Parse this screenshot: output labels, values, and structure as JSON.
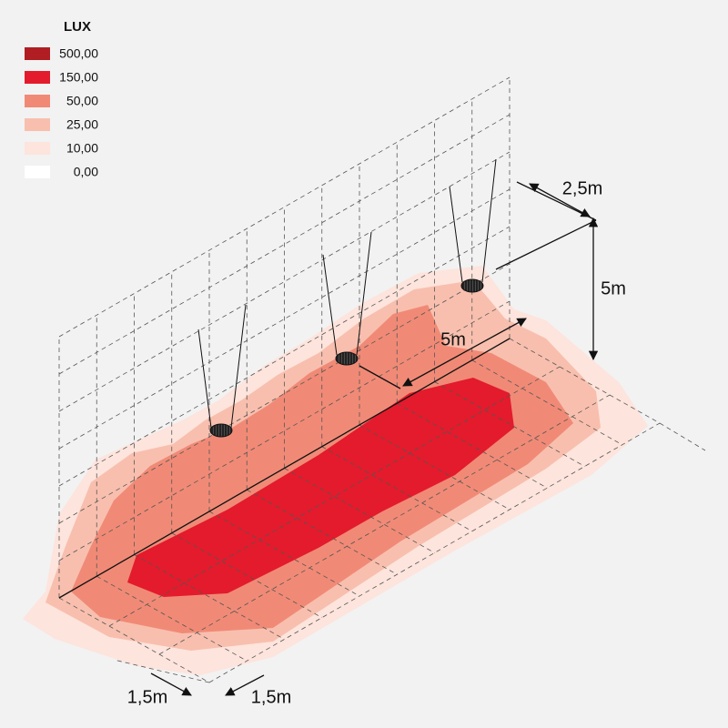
{
  "legend": {
    "title": "LUX",
    "items": [
      {
        "label": "500,00",
        "color": "#b01e23"
      },
      {
        "label": "150,00",
        "color": "#e31b2c"
      },
      {
        "label": "50,00",
        "color": "#f08a76"
      },
      {
        "label": "25,00",
        "color": "#f8bfae"
      },
      {
        "label": "10,00",
        "color": "#fde4dc"
      },
      {
        "label": "0,00",
        "color": "#ffffff"
      }
    ]
  },
  "dimensions": {
    "width": "2,5m",
    "height": "5m",
    "length": "5m",
    "spacing_left": "1,5m",
    "spacing_right": "1,5m"
  }
}
